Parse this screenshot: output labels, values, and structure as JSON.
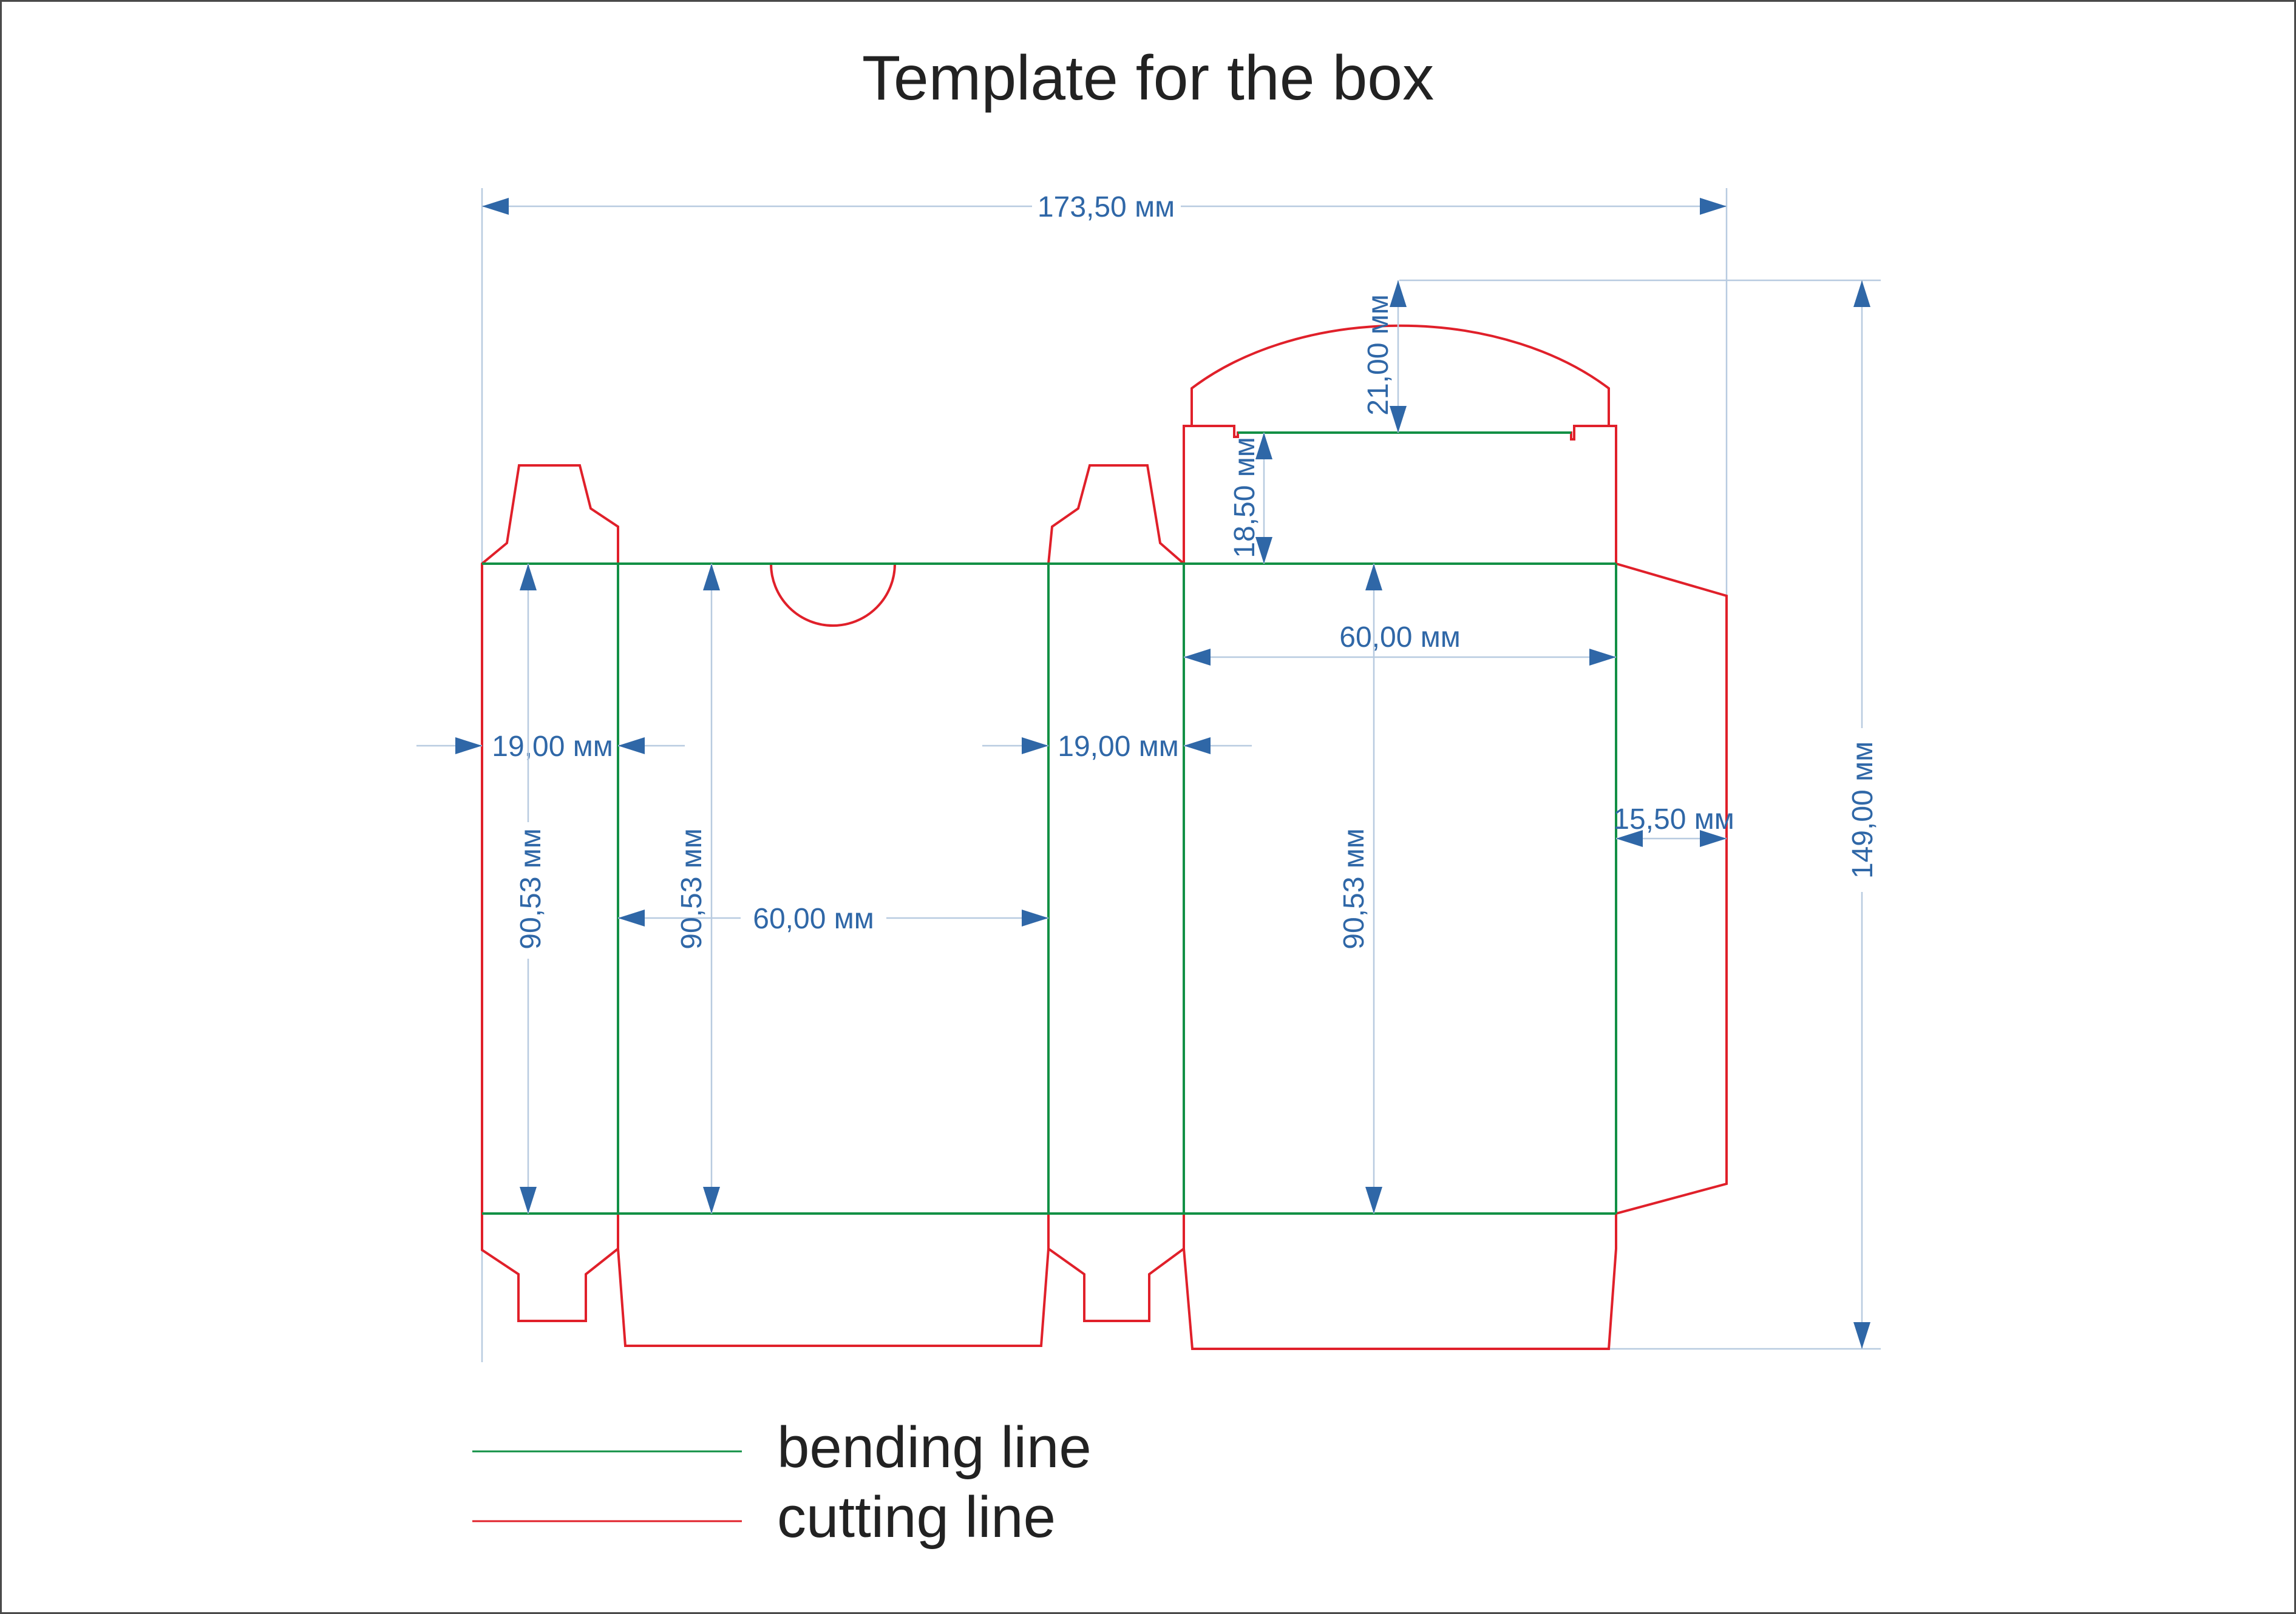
{
  "title": "Template for the box",
  "colors": {
    "bending_line": "#129045",
    "cutting_line": "#e0202a",
    "dimension": "#2f67a7",
    "extension": "#b8cbe0"
  },
  "dimensions": {
    "overall_width": "173,50 мм",
    "overall_height": "149,00 мм",
    "top_flap_height": "21,00 мм",
    "top_tuck_height": "18,50 мм",
    "side_panel_width_left": "19,00 мм",
    "side_panel_width_right": "19,00 мм",
    "front_panel_width": "60,00 мм",
    "back_panel_width": "60,00 мм",
    "panel_height_left": "90,53 мм",
    "panel_height_front": "90,53 мм",
    "panel_height_back": "90,53 мм",
    "glue_flap_width": "15,50 мм"
  },
  "legend": {
    "bending": "bending line",
    "cutting": "cutting line"
  }
}
